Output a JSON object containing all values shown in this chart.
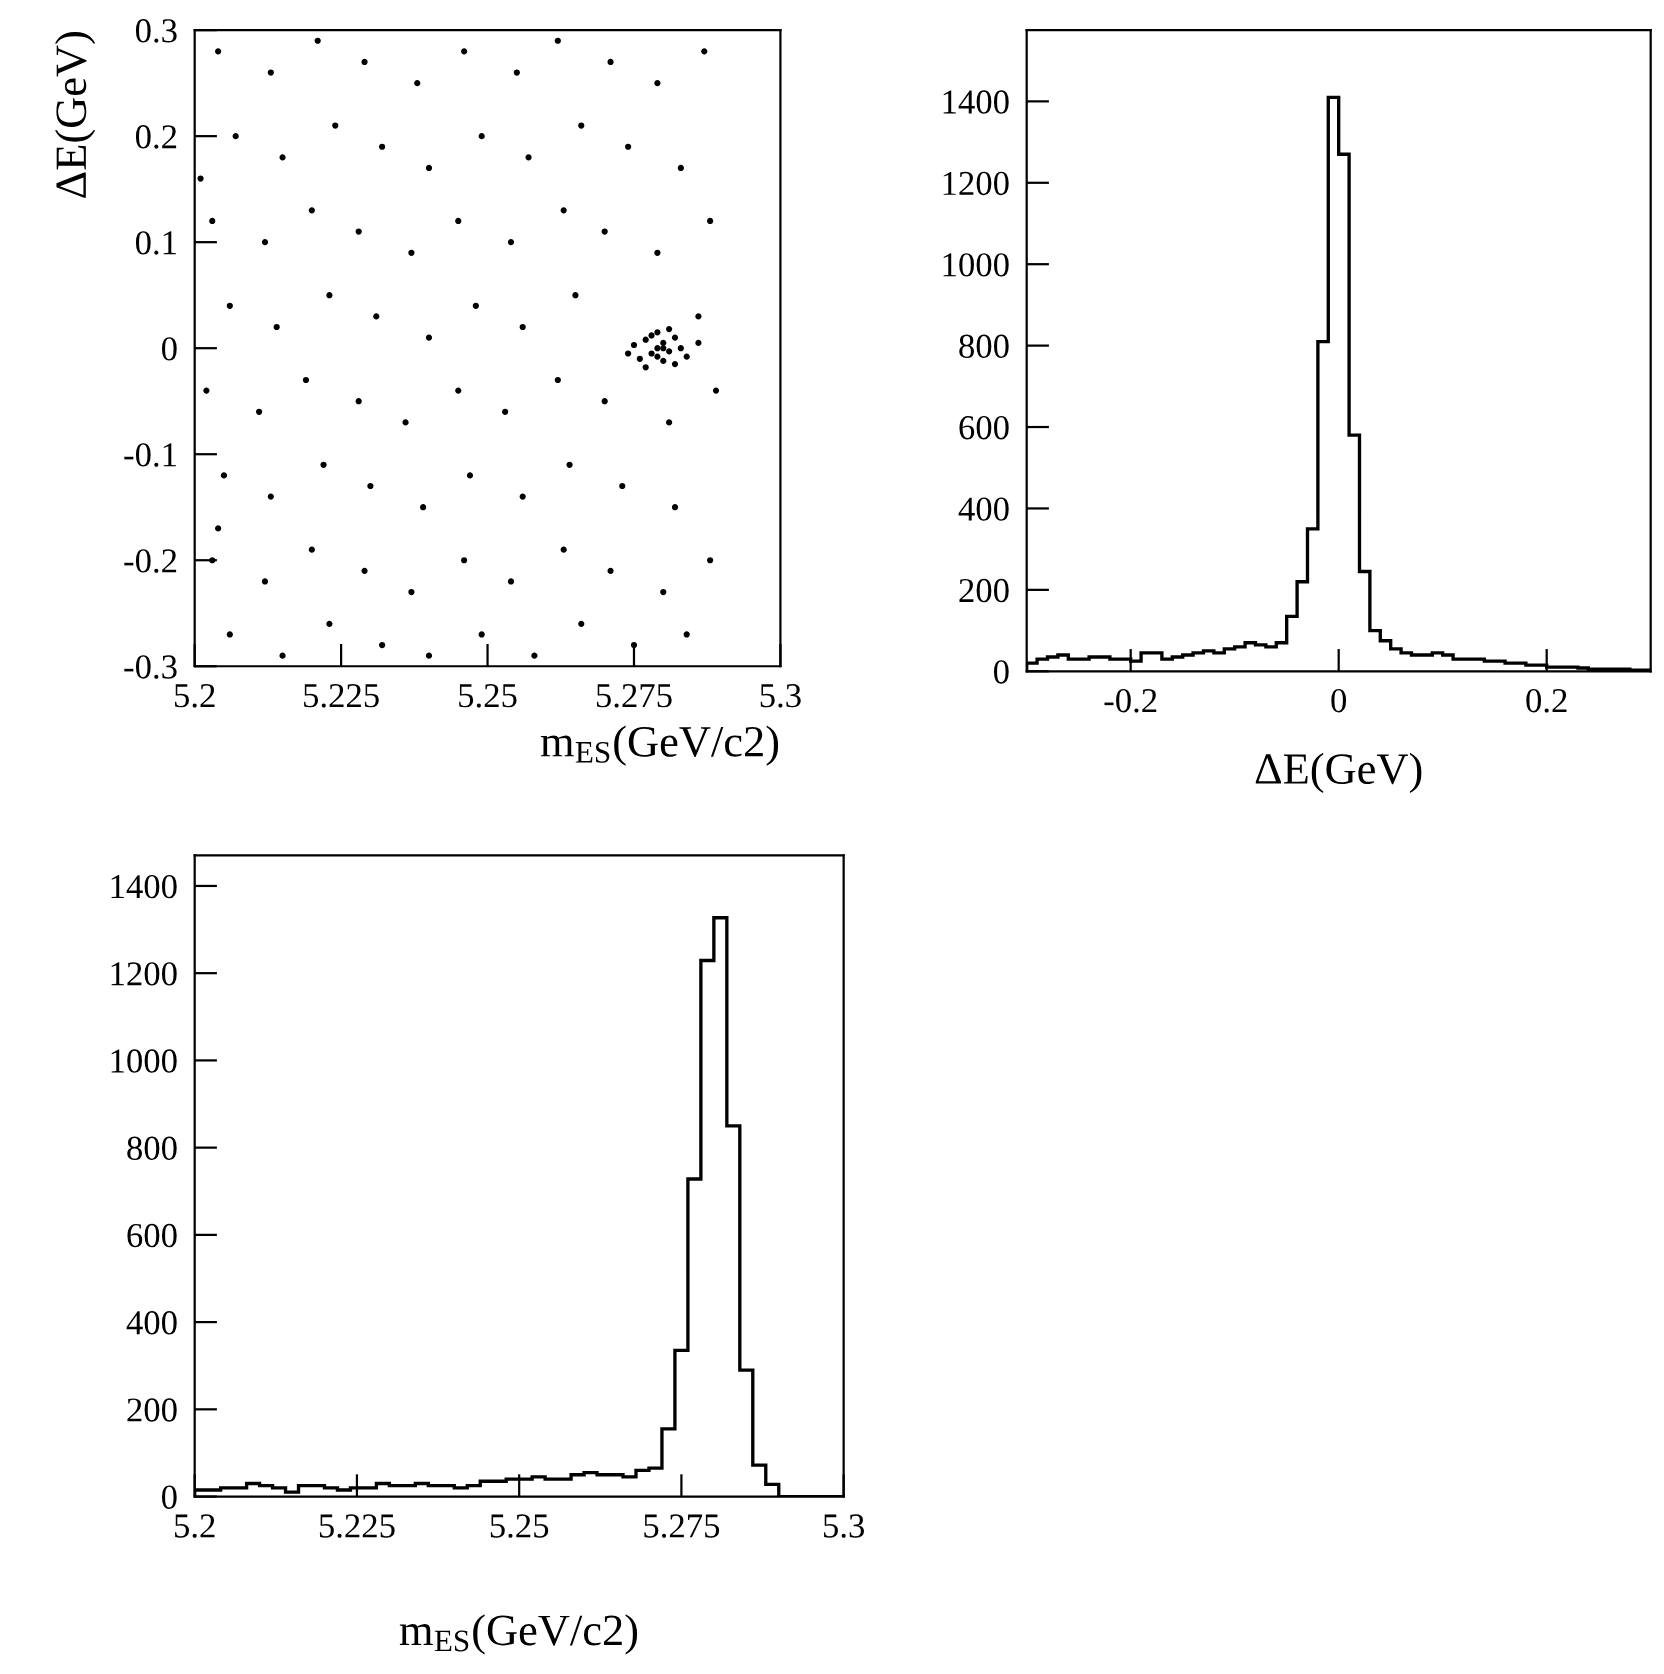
{
  "chart_data": [
    {
      "type": "scatter",
      "xlabel": "m$_{ES}$(GeV/c2)",
      "ylabel": "ΔE(GeV)",
      "xlim": [
        5.2,
        5.3
      ],
      "ylim": [
        -0.3,
        0.3
      ],
      "xticks": [
        5.2,
        5.225,
        5.25,
        5.275,
        5.3
      ],
      "yticks": [
        -0.3,
        -0.2,
        -0.1,
        0,
        0.1,
        0.2,
        0.3
      ],
      "grid": false,
      "marker": "circle",
      "series": [
        {
          "color": "#000000",
          "x": [
            5.204,
            5.213,
            5.221,
            5.229,
            5.238,
            5.246,
            5.255,
            5.262,
            5.271,
            5.279,
            5.287,
            5.207,
            5.215,
            5.224,
            5.232,
            5.24,
            5.249,
            5.257,
            5.266,
            5.274,
            5.283,
            5.201,
            5.203,
            5.212,
            5.22,
            5.228,
            5.237,
            5.245,
            5.254,
            5.263,
            5.27,
            5.279,
            5.288,
            5.206,
            5.214,
            5.223,
            5.231,
            5.24,
            5.248,
            5.256,
            5.265,
            5.286,
            5.202,
            5.211,
            5.219,
            5.228,
            5.236,
            5.245,
            5.253,
            5.262,
            5.27,
            5.281,
            5.289,
            5.205,
            5.213,
            5.222,
            5.23,
            5.239,
            5.247,
            5.256,
            5.264,
            5.273,
            5.282,
            5.204,
            5.203,
            5.212,
            5.22,
            5.229,
            5.237,
            5.246,
            5.254,
            5.263,
            5.271,
            5.28,
            5.288,
            5.206,
            5.215,
            5.223,
            5.232,
            5.24,
            5.249,
            5.258,
            5.266,
            5.275,
            5.284,
            5.279,
            5.28,
            5.278,
            5.281,
            5.277,
            5.282,
            5.276,
            5.28,
            5.283,
            5.279,
            5.275,
            5.284,
            5.278,
            5.281,
            5.277,
            5.286,
            5.274,
            5.28,
            5.282,
            5.279
          ],
          "values": [
            0.28,
            0.26,
            0.29,
            0.27,
            0.25,
            0.28,
            0.26,
            0.29,
            0.27,
            0.25,
            0.28,
            0.2,
            0.18,
            0.21,
            0.19,
            0.17,
            0.2,
            0.18,
            0.21,
            0.19,
            0.17,
            0.16,
            0.12,
            0.1,
            0.13,
            0.11,
            0.09,
            0.12,
            0.1,
            0.13,
            0.11,
            0.09,
            0.12,
            0.04,
            0.02,
            0.05,
            0.03,
            0.01,
            0.04,
            0.02,
            0.05,
            0.03,
            -0.04,
            -0.06,
            -0.03,
            -0.05,
            -0.07,
            -0.04,
            -0.06,
            -0.03,
            -0.05,
            -0.07,
            -0.04,
            -0.12,
            -0.14,
            -0.11,
            -0.13,
            -0.15,
            -0.12,
            -0.14,
            -0.11,
            -0.13,
            -0.15,
            -0.17,
            -0.2,
            -0.22,
            -0.19,
            -0.21,
            -0.23,
            -0.2,
            -0.22,
            -0.19,
            -0.21,
            -0.23,
            -0.2,
            -0.27,
            -0.29,
            -0.26,
            -0.28,
            -0.29,
            -0.27,
            -0.29,
            -0.26,
            -0.28,
            -0.27,
            0.0,
            0.005,
            -0.005,
            -0.003,
            0.008,
            0.01,
            -0.01,
            -0.012,
            0.0,
            0.015,
            0.003,
            -0.008,
            0.012,
            0.018,
            -0.018,
            0.005,
            -0.005,
            0.0,
            -0.015,
            -0.008
          ]
        }
      ]
    },
    {
      "type": "histogram",
      "xlabel": "ΔE(GeV)",
      "xlim": [
        -0.3,
        0.3
      ],
      "ylim": [
        0,
        1575
      ],
      "xticks": [
        {
          "value": -0.2,
          "label": "-0.2"
        },
        0,
        0.2
      ],
      "yticks": [
        0,
        200,
        400,
        600,
        800,
        1000,
        1200,
        1400
      ],
      "grid": false,
      "color": "#000000",
      "bins": [
        -0.3,
        -0.29,
        -0.28,
        -0.27,
        -0.26,
        -0.25,
        -0.24,
        -0.23,
        -0.22,
        -0.21,
        -0.2,
        -0.19,
        -0.18,
        -0.17,
        -0.16,
        -0.15,
        -0.14,
        -0.13,
        -0.12,
        -0.11,
        -0.1,
        -0.09,
        -0.08,
        -0.07,
        -0.06,
        -0.05,
        -0.04,
        -0.03,
        -0.02,
        -0.01,
        0.0,
        0.01,
        0.02,
        0.03,
        0.04,
        0.05,
        0.06,
        0.07,
        0.08,
        0.09,
        0.1,
        0.11,
        0.12,
        0.13,
        0.14,
        0.15,
        0.16,
        0.17,
        0.18,
        0.19,
        0.2,
        0.21,
        0.22,
        0.23,
        0.24,
        0.25,
        0.26,
        0.27,
        0.28,
        0.29,
        0.3
      ],
      "values": [
        20,
        30,
        35,
        40,
        30,
        30,
        35,
        35,
        30,
        30,
        25,
        45,
        45,
        30,
        35,
        40,
        45,
        50,
        45,
        55,
        60,
        70,
        65,
        60,
        70,
        135,
        220,
        350,
        810,
        1410,
        1270,
        580,
        245,
        100,
        75,
        55,
        45,
        40,
        40,
        45,
        40,
        30,
        30,
        30,
        25,
        25,
        20,
        20,
        15,
        15,
        10,
        10,
        10,
        8,
        5,
        5,
        5,
        5,
        3,
        3
      ]
    },
    {
      "type": "histogram",
      "xlabel": "m$_{ES}$(GeV/c2)",
      "xlim": [
        5.2,
        5.3
      ],
      "ylim": [
        0,
        1470
      ],
      "xticks": [
        5.2,
        5.225,
        5.25,
        5.275,
        5.3
      ],
      "yticks": [
        0,
        200,
        400,
        600,
        800,
        1000,
        1200,
        1400
      ],
      "grid": false,
      "color": "#000000",
      "bins": [
        5.2,
        5.202,
        5.204,
        5.206,
        5.208,
        5.21,
        5.212,
        5.214,
        5.216,
        5.218,
        5.22,
        5.222,
        5.224,
        5.226,
        5.228,
        5.23,
        5.232,
        5.234,
        5.236,
        5.238,
        5.24,
        5.242,
        5.244,
        5.246,
        5.248,
        5.25,
        5.252,
        5.254,
        5.256,
        5.258,
        5.26,
        5.262,
        5.264,
        5.266,
        5.268,
        5.27,
        5.272,
        5.274,
        5.276,
        5.278,
        5.28,
        5.282,
        5.284,
        5.286,
        5.288,
        5.29,
        5.292,
        5.294,
        5.296,
        5.298,
        5.3
      ],
      "values": [
        15,
        15,
        20,
        20,
        30,
        25,
        20,
        10,
        25,
        25,
        20,
        15,
        20,
        20,
        30,
        25,
        25,
        30,
        25,
        25,
        20,
        25,
        35,
        35,
        40,
        40,
        45,
        40,
        40,
        50,
        55,
        50,
        50,
        45,
        60,
        65,
        155,
        335,
        728,
        1229,
        1327,
        850,
        290,
        72,
        28,
        0,
        0,
        0,
        0,
        0
      ]
    }
  ]
}
